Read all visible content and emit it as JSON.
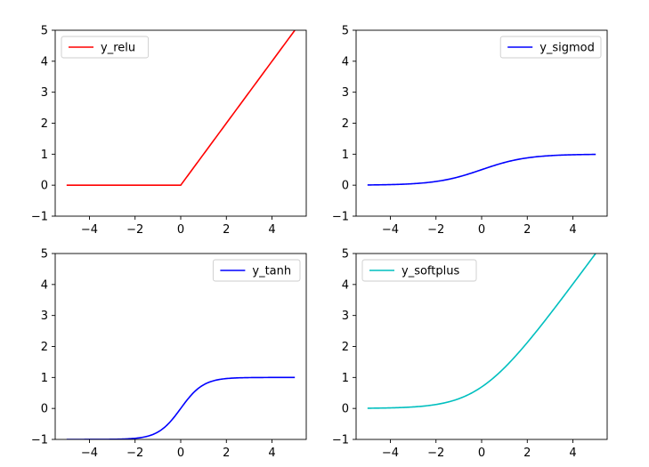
{
  "chart_data": [
    {
      "type": "line",
      "series": [
        {
          "name": "y_relu",
          "color": "#ff0000",
          "function": "relu"
        }
      ],
      "x": [
        -5,
        5
      ],
      "xlim": [
        -5.5,
        5.5
      ],
      "ylim": [
        -1,
        5
      ],
      "xticks": [
        -4,
        -2,
        0,
        2,
        4
      ],
      "yticks": [
        -1,
        0,
        1,
        2,
        3,
        4,
        5
      ],
      "xtick_labels": [
        "−4",
        "−2",
        "0",
        "2",
        "4"
      ],
      "ytick_labels": [
        "−1",
        "0",
        "1",
        "2",
        "3",
        "4",
        "5"
      ],
      "legend_loc": "upper left",
      "grid": false
    },
    {
      "type": "line",
      "series": [
        {
          "name": "y_sigmod",
          "color": "#0000ff",
          "function": "sigmoid"
        }
      ],
      "x": [
        -5,
        5
      ],
      "xlim": [
        -5.5,
        5.5
      ],
      "ylim": [
        -1,
        5
      ],
      "xticks": [
        -4,
        -2,
        0,
        2,
        4
      ],
      "yticks": [
        -1,
        0,
        1,
        2,
        3,
        4,
        5
      ],
      "xtick_labels": [
        "−4",
        "−2",
        "0",
        "2",
        "4"
      ],
      "ytick_labels": [
        "−1",
        "0",
        "1",
        "2",
        "3",
        "4",
        "5"
      ],
      "legend_loc": "upper right",
      "grid": false
    },
    {
      "type": "line",
      "series": [
        {
          "name": "y_tanh",
          "color": "#0000ff",
          "function": "tanh"
        }
      ],
      "x": [
        -5,
        5
      ],
      "xlim": [
        -5.5,
        5.5
      ],
      "ylim": [
        -1,
        5
      ],
      "xticks": [
        -4,
        -2,
        0,
        2,
        4
      ],
      "yticks": [
        -1,
        0,
        1,
        2,
        3,
        4,
        5
      ],
      "xtick_labels": [
        "−4",
        "−2",
        "0",
        "2",
        "4"
      ],
      "ytick_labels": [
        "−1",
        "0",
        "1",
        "2",
        "3",
        "4",
        "5"
      ],
      "legend_loc": "upper right",
      "grid": false
    },
    {
      "type": "line",
      "series": [
        {
          "name": "y_softplus",
          "color": "#00bfbf",
          "function": "softplus"
        }
      ],
      "x": [
        -5,
        5
      ],
      "xlim": [
        -5.5,
        5.5
      ],
      "ylim": [
        -1,
        5
      ],
      "xticks": [
        -4,
        -2,
        0,
        2,
        4
      ],
      "yticks": [
        -1,
        0,
        1,
        2,
        3,
        4,
        5
      ],
      "xtick_labels": [
        "−4",
        "−2",
        "0",
        "2",
        "4"
      ],
      "ytick_labels": [
        "−1",
        "0",
        "1",
        "2",
        "3",
        "4",
        "5"
      ],
      "legend_loc": "upper left",
      "grid": false
    }
  ]
}
